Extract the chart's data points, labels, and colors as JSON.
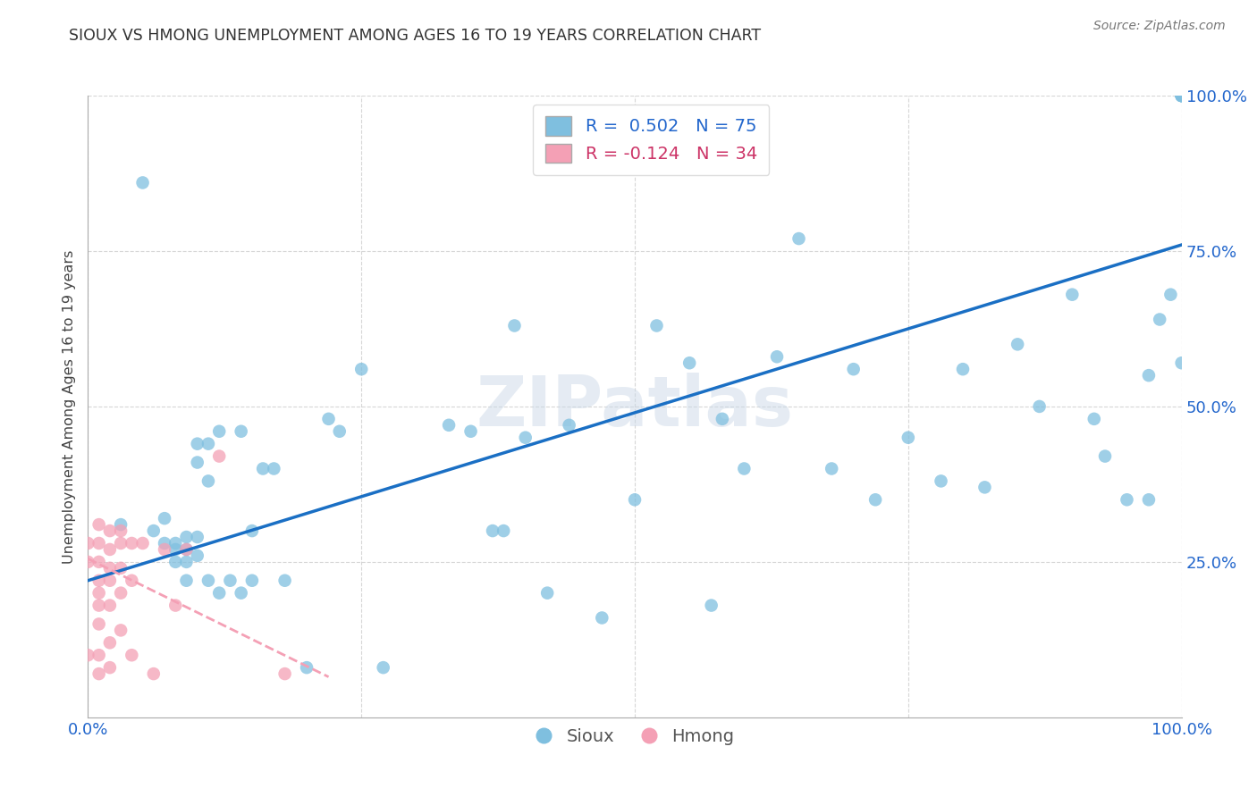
{
  "title": "SIOUX VS HMONG UNEMPLOYMENT AMONG AGES 16 TO 19 YEARS CORRELATION CHART",
  "source": "Source: ZipAtlas.com",
  "ylabel": "Unemployment Among Ages 16 to 19 years",
  "xlim": [
    0,
    1.0
  ],
  "ylim": [
    0,
    1.0
  ],
  "sioux_color": "#7fbfdf",
  "hmong_color": "#f4a0b5",
  "sioux_line_color": "#1a6fc4",
  "hmong_line_color": "#f4a0b5",
  "watermark": "ZIPatlas",
  "legend_r_sioux": "R =  0.502",
  "legend_n_sioux": "N = 75",
  "legend_r_hmong": "R = -0.124",
  "legend_n_hmong": "N = 34",
  "sioux_x": [
    0.03,
    0.05,
    0.06,
    0.07,
    0.07,
    0.08,
    0.08,
    0.08,
    0.09,
    0.09,
    0.09,
    0.09,
    0.1,
    0.1,
    0.1,
    0.1,
    0.11,
    0.11,
    0.11,
    0.12,
    0.12,
    0.13,
    0.14,
    0.14,
    0.15,
    0.15,
    0.16,
    0.17,
    0.18,
    0.2,
    0.22,
    0.23,
    0.25,
    0.27,
    0.33,
    0.35,
    0.37,
    0.38,
    0.39,
    0.4,
    0.42,
    0.44,
    0.47,
    0.5,
    0.52,
    0.55,
    0.57,
    0.58,
    0.6,
    0.63,
    0.65,
    0.68,
    0.7,
    0.72,
    0.75,
    0.78,
    0.8,
    0.82,
    0.85,
    0.87,
    0.9,
    0.92,
    0.93,
    0.95,
    0.97,
    0.97,
    0.98,
    0.99,
    1.0,
    1.0,
    1.0,
    1.0,
    1.0,
    1.0,
    1.0
  ],
  "sioux_y": [
    0.31,
    0.86,
    0.3,
    0.28,
    0.32,
    0.27,
    0.25,
    0.28,
    0.27,
    0.29,
    0.22,
    0.25,
    0.29,
    0.26,
    0.41,
    0.44,
    0.44,
    0.38,
    0.22,
    0.2,
    0.46,
    0.22,
    0.2,
    0.46,
    0.22,
    0.3,
    0.4,
    0.4,
    0.22,
    0.08,
    0.48,
    0.46,
    0.56,
    0.08,
    0.47,
    0.46,
    0.3,
    0.3,
    0.63,
    0.45,
    0.2,
    0.47,
    0.16,
    0.35,
    0.63,
    0.57,
    0.18,
    0.48,
    0.4,
    0.58,
    0.77,
    0.4,
    0.56,
    0.35,
    0.45,
    0.38,
    0.56,
    0.37,
    0.6,
    0.5,
    0.68,
    0.48,
    0.42,
    0.35,
    0.35,
    0.55,
    0.64,
    0.68,
    1.0,
    1.0,
    1.0,
    1.0,
    1.0,
    1.0,
    0.57
  ],
  "hmong_x": [
    0.0,
    0.0,
    0.0,
    0.01,
    0.01,
    0.01,
    0.01,
    0.01,
    0.01,
    0.01,
    0.01,
    0.01,
    0.02,
    0.02,
    0.02,
    0.02,
    0.02,
    0.02,
    0.02,
    0.03,
    0.03,
    0.03,
    0.03,
    0.03,
    0.04,
    0.04,
    0.04,
    0.05,
    0.06,
    0.07,
    0.08,
    0.09,
    0.12,
    0.18
  ],
  "hmong_y": [
    0.28,
    0.25,
    0.1,
    0.31,
    0.28,
    0.25,
    0.22,
    0.2,
    0.18,
    0.15,
    0.1,
    0.07,
    0.3,
    0.27,
    0.24,
    0.22,
    0.18,
    0.12,
    0.08,
    0.3,
    0.28,
    0.24,
    0.2,
    0.14,
    0.28,
    0.22,
    0.1,
    0.28,
    0.07,
    0.27,
    0.18,
    0.27,
    0.42,
    0.07
  ],
  "sioux_trend_x": [
    0.0,
    1.0
  ],
  "sioux_trend_y": [
    0.22,
    0.76
  ],
  "hmong_trend_x": [
    0.0,
    0.22
  ],
  "hmong_trend_y": [
    0.255,
    0.065
  ]
}
